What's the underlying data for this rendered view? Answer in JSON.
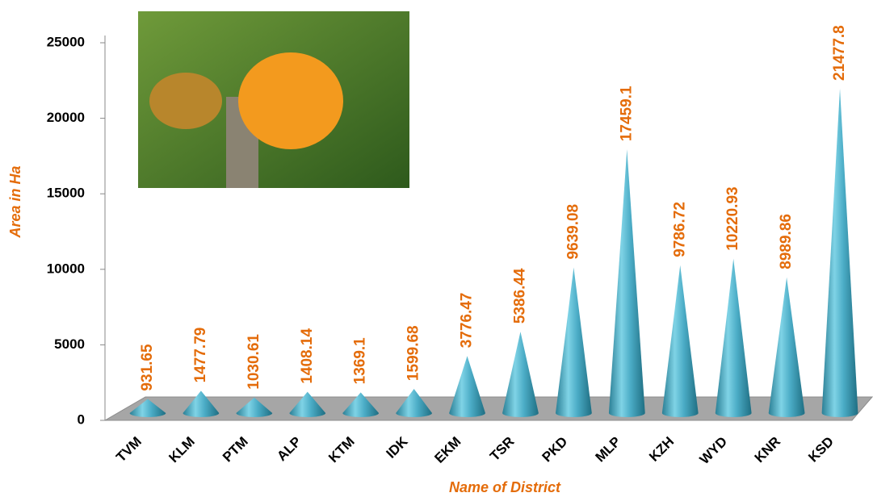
{
  "chart_data": {
    "type": "cone",
    "y_label": "Area in Ha",
    "x_label": "Name of District",
    "categories": [
      "TVM",
      "KLM",
      "PTM",
      "ALP",
      "KTM",
      "IDK",
      "EKM",
      "TSR",
      "PKD",
      "MLP",
      "KZH",
      "WYD",
      "KNR",
      "KSD"
    ],
    "values": [
      931.65,
      1477.79,
      1030.61,
      1408.14,
      1369.1,
      1599.68,
      3776.47,
      5386.44,
      9639.08,
      17459.1,
      9786.72,
      10220.93,
      8989.86,
      21477.8
    ],
    "color": "#4bacc6",
    "label_color": "#e46c0a",
    "ylim": [
      0,
      25000
    ],
    "yticks": [
      0,
      5000,
      10000,
      15000,
      20000,
      25000
    ]
  }
}
